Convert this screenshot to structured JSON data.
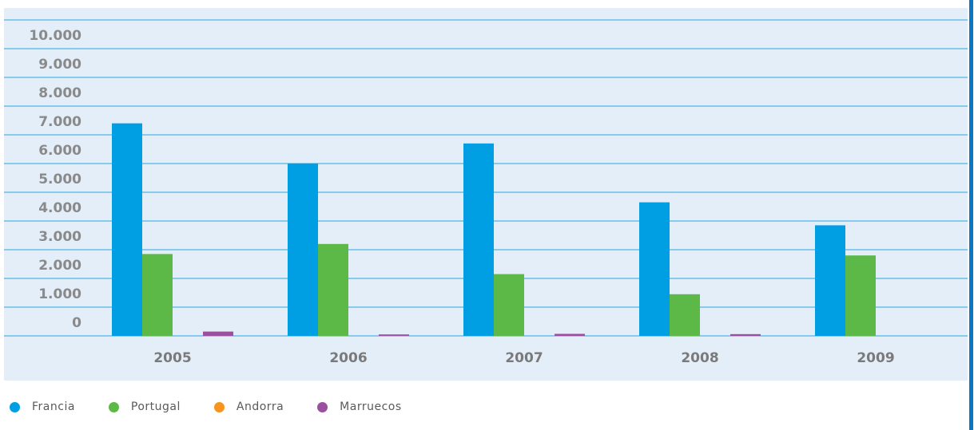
{
  "chart_data": {
    "type": "bar",
    "categories": [
      "2005",
      "2006",
      "2007",
      "2008",
      "2009"
    ],
    "series": [
      {
        "name": "Francia",
        "color": "#009fe3",
        "values": [
          7400,
          6000,
          6700,
          4650,
          3850
        ]
      },
      {
        "name": "Portugal",
        "color": "#5cb947",
        "values": [
          2850,
          3200,
          2150,
          1450,
          2800
        ]
      },
      {
        "name": "Andorra",
        "color": "#f7941d",
        "values": [
          0,
          0,
          0,
          0,
          0
        ]
      },
      {
        "name": "Marruecos",
        "color": "#9c4f9f",
        "values": [
          150,
          50,
          70,
          60,
          0
        ]
      }
    ],
    "y_tick_labels": [
      "0",
      "1.000",
      "2.000",
      "3.000",
      "4.000",
      "5.000",
      "6.000",
      "7.000",
      "8.000",
      "9.000",
      "10.000"
    ],
    "ylim": [
      0,
      11000
    ],
    "grid": true,
    "legend_position": "bottom-left",
    "title": "",
    "xlabel": "",
    "ylabel": ""
  }
}
